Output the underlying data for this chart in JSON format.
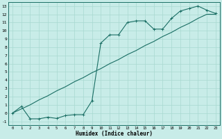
{
  "title": "",
  "xlabel": "Humidex (Indice chaleur)",
  "bg_color": "#c8ece8",
  "grid_color": "#a8d8d0",
  "line_color": "#1a6e64",
  "xlim": [
    -0.5,
    23.5
  ],
  "ylim": [
    -1.5,
    13.5
  ],
  "xticks": [
    0,
    1,
    2,
    3,
    4,
    5,
    6,
    7,
    8,
    9,
    10,
    11,
    12,
    13,
    14,
    15,
    16,
    17,
    18,
    19,
    20,
    21,
    22,
    23
  ],
  "yticks": [
    -1,
    0,
    1,
    2,
    3,
    4,
    5,
    6,
    7,
    8,
    9,
    10,
    11,
    12,
    13
  ],
  "curve1_x": [
    0,
    1,
    2,
    3,
    4,
    5,
    6,
    7,
    8,
    9,
    10,
    11,
    12,
    13,
    14,
    15,
    16,
    17,
    18,
    19,
    20,
    21,
    22,
    23
  ],
  "curve1_y": [
    0.0,
    0.8,
    -0.7,
    -0.7,
    -0.5,
    -0.65,
    -0.3,
    -0.2,
    -0.2,
    1.5,
    8.5,
    9.5,
    9.5,
    11.0,
    11.2,
    11.2,
    10.2,
    10.2,
    11.5,
    12.4,
    12.7,
    13.0,
    12.5,
    12.1
  ],
  "curve2_x": [
    0,
    1,
    2,
    3,
    4,
    5,
    6,
    7,
    8,
    9,
    10,
    11,
    12,
    13,
    14,
    15,
    16,
    17,
    18,
    19,
    20,
    21,
    22,
    23
  ],
  "curve2_y": [
    0.0,
    0.5,
    1.0,
    1.6,
    2.1,
    2.7,
    3.2,
    3.8,
    4.3,
    4.9,
    5.4,
    6.0,
    6.5,
    7.1,
    7.6,
    8.2,
    8.7,
    9.3,
    9.8,
    10.4,
    10.9,
    11.5,
    12.0,
    12.0
  ]
}
